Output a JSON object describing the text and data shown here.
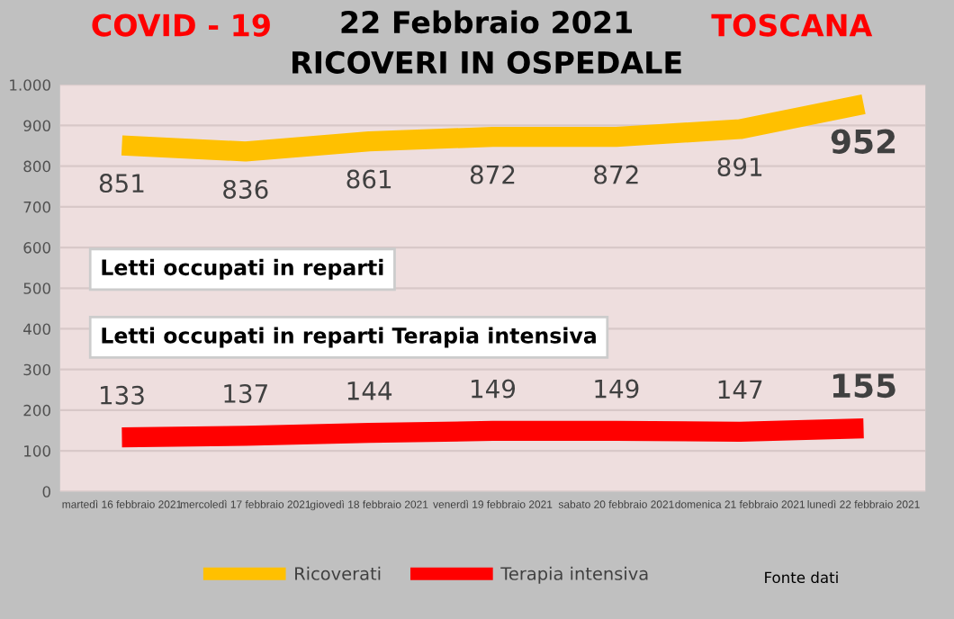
{
  "chart_data": {
    "type": "line",
    "title": "22 Febbraio 2021",
    "subtitle": "RICOVERI IN OSPEDALE",
    "categories": [
      "martedì 16 febbraio 2021",
      "mercoledì 17 febbraio 2021",
      "giovedì 18 febbraio 2021",
      "venerdì 19 febbraio 2021",
      "sabato 20 febbraio 2021",
      "domenica 21 febbraio 2021",
      "lunedì 22 febbraio 2021"
    ],
    "series": [
      {
        "name": "Ricoverati",
        "color": "#ffc000",
        "values": [
          851,
          836,
          861,
          872,
          872,
          891,
          952
        ]
      },
      {
        "name": "Terapia intensiva",
        "color": "#ff0000",
        "values": [
          133,
          137,
          144,
          149,
          149,
          147,
          155
        ]
      }
    ],
    "ylim": [
      0,
      1000
    ],
    "yticks": [
      0,
      100,
      200,
      300,
      400,
      500,
      600,
      700,
      800,
      900,
      {
        "value": 1000,
        "label": "1.000"
      }
    ],
    "grid": "y",
    "legend": "bottom",
    "data_labels": true,
    "marker": "none",
    "line_style": "solid",
    "annotations": [
      "COVID - 19",
      "TOSCANA",
      "Letti occupati in reparti",
      "Letti occupati in reparti Terapia intensiva",
      "Fonte dati"
    ]
  }
}
